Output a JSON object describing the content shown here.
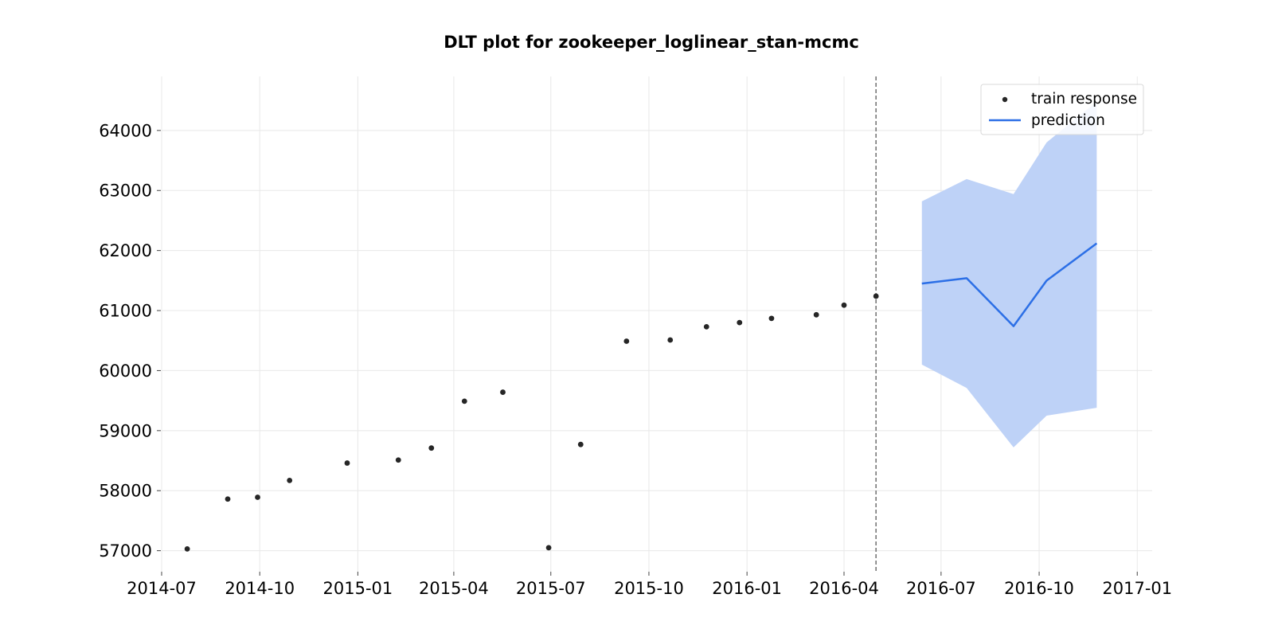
{
  "chart_data": {
    "type": "scatter",
    "title": "DLT plot for zookeeper_loglinear_stan-mcmc",
    "xlabel": "",
    "ylabel": "",
    "x_type": "date",
    "xlim": [
      "2014-07-01",
      "2017-01-15"
    ],
    "ylim": [
      56650,
      64900
    ],
    "x_ticks": [
      "2014-07-01",
      "2014-10-01",
      "2015-01-01",
      "2015-04-01",
      "2015-07-01",
      "2015-10-01",
      "2016-01-01",
      "2016-04-01",
      "2016-07-01",
      "2016-10-01",
      "2017-01-01"
    ],
    "x_tick_labels": [
      "2014-07",
      "2014-10",
      "2015-01",
      "2015-04",
      "2015-07",
      "2015-10",
      "2016-01",
      "2016-04",
      "2016-07",
      "2016-10",
      "2017-01"
    ],
    "y_ticks": [
      57000,
      58000,
      59000,
      60000,
      61000,
      62000,
      63000,
      64000
    ],
    "y_tick_labels": [
      "57000",
      "58000",
      "59000",
      "60000",
      "61000",
      "62000",
      "63000",
      "64000"
    ],
    "grid": true,
    "legend_position": "top-right",
    "split_date": "2016-05-01",
    "series": [
      {
        "name": "train response",
        "kind": "scatter",
        "color": "#262626",
        "x": [
          "2014-07-25",
          "2014-09-01",
          "2014-09-29",
          "2014-10-29",
          "2014-12-22",
          "2015-02-08",
          "2015-03-11",
          "2015-04-11",
          "2015-05-17",
          "2015-06-29",
          "2015-07-29",
          "2015-09-10",
          "2015-10-21",
          "2015-11-24",
          "2015-12-25",
          "2016-01-24",
          "2016-03-06",
          "2016-04-01",
          "2016-05-01"
        ],
        "y": [
          57030,
          57860,
          57890,
          58170,
          58460,
          58510,
          58710,
          59490,
          59640,
          57050,
          58770,
          60490,
          60510,
          60730,
          60800,
          60870,
          60930,
          61090,
          61240
        ]
      },
      {
        "name": "prediction",
        "kind": "line",
        "color": "#2c6fe6",
        "x": [
          "2016-06-13",
          "2016-07-25",
          "2016-09-07",
          "2016-10-08",
          "2016-11-24"
        ],
        "y": [
          61450,
          61540,
          60740,
          61500,
          62120
        ]
      },
      {
        "name": "",
        "kind": "band",
        "color": "#bed2f7",
        "x": [
          "2016-06-13",
          "2016-07-25",
          "2016-09-07",
          "2016-10-08",
          "2016-11-24"
        ],
        "lower": [
          60100,
          59710,
          58720,
          59250,
          59380
        ],
        "upper": [
          62820,
          63190,
          62940,
          63800,
          64480
        ]
      }
    ]
  }
}
